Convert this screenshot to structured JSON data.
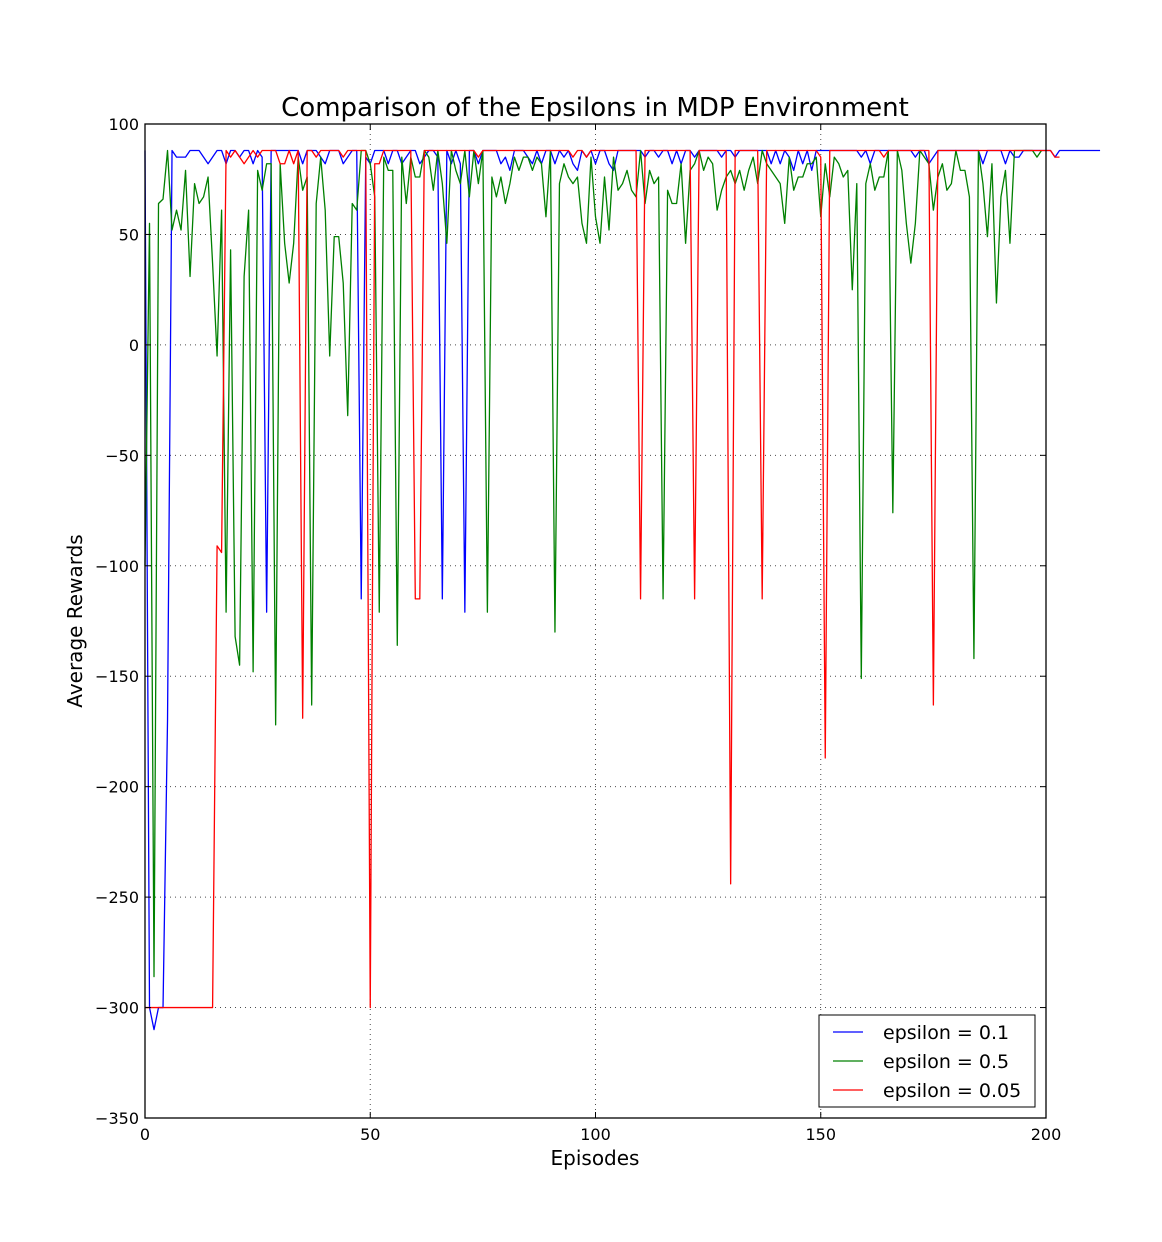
{
  "chart_data": {
    "type": "line",
    "title": "Comparison of the Epsilons in MDP Environment",
    "xlabel": "Episodes",
    "ylabel": "Average Rewards",
    "xlim": [
      0,
      200
    ],
    "ylim": [
      -350,
      100
    ],
    "xticks": [
      "0",
      "50",
      "100",
      "150",
      "200"
    ],
    "yticks": [
      "100",
      "50",
      "0",
      "−50",
      "−100",
      "−150",
      "−200",
      "−250",
      "−300",
      "−350"
    ],
    "grid": true,
    "legend_position": "lower-right",
    "series": [
      {
        "name": "epsilon = 0.1",
        "color": "#0000ff",
        "values": [
          88,
          -300,
          -310,
          -300,
          -300,
          -170,
          88,
          85,
          85,
          85,
          88,
          88,
          88,
          85,
          82,
          85,
          88,
          88,
          82,
          88,
          88,
          85,
          88,
          88,
          82,
          88,
          85,
          -121,
          88,
          88,
          88,
          88,
          88,
          88,
          88,
          82,
          88,
          88,
          88,
          85,
          82,
          88,
          88,
          88,
          82,
          85,
          88,
          88,
          -115,
          85,
          82,
          88,
          88,
          88,
          82,
          88,
          88,
          82,
          85,
          88,
          88,
          82,
          85,
          88,
          88,
          85,
          -115,
          88,
          82,
          88,
          82,
          -121,
          88,
          88,
          82,
          88,
          88,
          88,
          88,
          82,
          85,
          79,
          88,
          88,
          88,
          85,
          82,
          88,
          82,
          88,
          88,
          82,
          88,
          85,
          88,
          82,
          79,
          88,
          85,
          88,
          82,
          88,
          88,
          82,
          79,
          88,
          88,
          88,
          88,
          88,
          88,
          85,
          88,
          88,
          85,
          88,
          88,
          82,
          88,
          82,
          88,
          88,
          85,
          88,
          88,
          88,
          88,
          88,
          85,
          88,
          88,
          85,
          88,
          88,
          88,
          88,
          88,
          88,
          88,
          82,
          88,
          82,
          88,
          85,
          79,
          88,
          82,
          88,
          79,
          88,
          88,
          88,
          88,
          88,
          88,
          88,
          88,
          88,
          88,
          85,
          88,
          82,
          88,
          88,
          88,
          88,
          88,
          88,
          88,
          88,
          88,
          85,
          88,
          88,
          82,
          85,
          88,
          88,
          88,
          88,
          88,
          88,
          88,
          88,
          88,
          88,
          82,
          88,
          88,
          88,
          88,
          82,
          88,
          85,
          85,
          88,
          88,
          88,
          88,
          88,
          88,
          88,
          85,
          88,
          88,
          88,
          88,
          88,
          88,
          88,
          88,
          88,
          88
        ]
      },
      {
        "name": "epsilon = 0.5",
        "color": "#008000",
        "values": [
          -100,
          55,
          -286,
          64,
          66,
          88,
          52,
          61,
          52,
          79,
          31,
          73,
          64,
          67,
          76,
          37,
          -5,
          61,
          -121,
          43,
          -132,
          -145,
          31,
          61,
          -148,
          79,
          70,
          82,
          82,
          -172,
          82,
          46,
          28,
          46,
          85,
          70,
          76,
          -163,
          64,
          85,
          61,
          -5,
          49,
          49,
          28,
          -32,
          64,
          61,
          88,
          88,
          82,
          67,
          -121,
          85,
          79,
          79,
          -136,
          85,
          64,
          85,
          76,
          76,
          88,
          85,
          70,
          88,
          73,
          46,
          88,
          79,
          73,
          88,
          67,
          88,
          73,
          88,
          -121,
          76,
          67,
          76,
          64,
          73,
          85,
          79,
          85,
          85,
          79,
          85,
          82,
          58,
          88,
          -130,
          73,
          82,
          76,
          73,
          76,
          55,
          46,
          85,
          58,
          46,
          76,
          52,
          85,
          70,
          73,
          79,
          70,
          67,
          88,
          64,
          79,
          73,
          76,
          -115,
          70,
          64,
          64,
          82,
          46,
          79,
          82,
          88,
          79,
          85,
          82,
          61,
          70,
          76,
          79,
          73,
          79,
          70,
          79,
          85,
          73,
          88,
          82,
          79,
          76,
          73,
          55,
          85,
          70,
          76,
          76,
          82,
          82,
          85,
          58,
          82,
          67,
          85,
          82,
          76,
          79,
          25,
          73,
          -151,
          73,
          82,
          70,
          76,
          76,
          88,
          -76,
          88,
          79,
          55,
          37,
          55,
          88,
          85,
          82,
          61,
          76,
          82,
          70,
          73,
          88,
          79,
          79,
          67,
          -142,
          88,
          73,
          49,
          82,
          19,
          67,
          79,
          46,
          88,
          88,
          88,
          88,
          88,
          85,
          88
        ]
      },
      {
        "name": "epsilon = 0.05",
        "color": "#ff0000",
        "values": [
          -300,
          -300,
          -300,
          -300,
          -300,
          -300,
          -300,
          -300,
          -300,
          -300,
          -300,
          -300,
          -300,
          -300,
          -300,
          -300,
          -91,
          -94,
          88,
          85,
          88,
          85,
          82,
          85,
          88,
          85,
          88,
          88,
          88,
          88,
          82,
          82,
          88,
          82,
          88,
          -169,
          88,
          88,
          85,
          88,
          88,
          88,
          88,
          88,
          85,
          88,
          88,
          88,
          88,
          88,
          -300,
          82,
          82,
          88,
          88,
          88,
          88,
          88,
          88,
          88,
          -115,
          -115,
          88,
          88,
          88,
          88,
          88,
          88,
          88,
          88,
          88,
          88,
          88,
          88,
          85,
          88,
          88,
          88,
          88,
          88,
          88,
          88,
          88,
          88,
          88,
          88,
          88,
          88,
          88,
          88,
          88,
          88,
          88,
          88,
          88,
          85,
          88,
          88,
          85,
          88,
          88,
          88,
          88,
          88,
          88,
          88,
          88,
          88,
          88,
          88,
          -115,
          88,
          88,
          88,
          88,
          88,
          88,
          88,
          88,
          88,
          88,
          88,
          -115,
          88,
          88,
          88,
          88,
          88,
          88,
          88,
          -244,
          88,
          88,
          88,
          88,
          88,
          88,
          -115,
          88,
          88,
          88,
          88,
          88,
          88,
          88,
          88,
          88,
          88,
          88,
          88,
          85,
          -187,
          88,
          88,
          88,
          88,
          88,
          88,
          88,
          88,
          88,
          88,
          88,
          88,
          85,
          88,
          88,
          88,
          88,
          88,
          88,
          88,
          88,
          88,
          88,
          -163,
          88,
          88,
          88,
          88,
          88,
          88,
          88,
          88,
          88,
          88,
          88,
          88,
          88,
          88,
          88,
          88,
          88,
          88,
          88,
          88,
          88,
          88,
          88,
          88,
          88,
          88,
          85,
          85
        ]
      }
    ]
  }
}
